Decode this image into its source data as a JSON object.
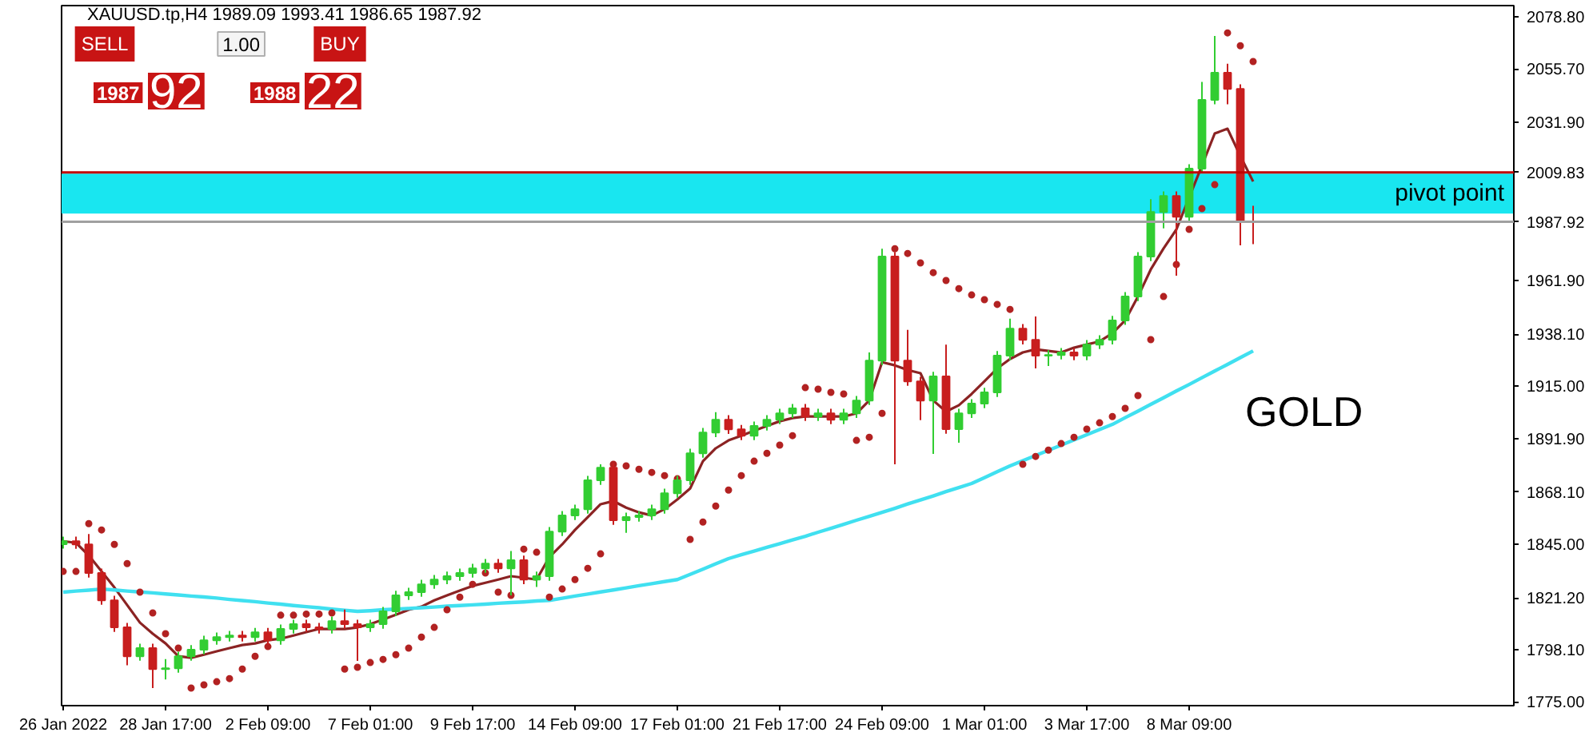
{
  "chart_data": {
    "type": "candlestick",
    "title": "XAUUSD.tp,H4  1989.09 1993.41 1986.65 1987.92",
    "categories": [
      "26 Jan 2022",
      null,
      null,
      null,
      null,
      null,
      null,
      null,
      "28 Jan 17:00",
      null,
      null,
      null,
      null,
      null,
      null,
      null,
      "2 Feb 09:00",
      null,
      null,
      null,
      null,
      null,
      null,
      null,
      "7 Feb 01:00",
      null,
      null,
      null,
      null,
      null,
      null,
      null,
      "9 Feb 17:00",
      null,
      null,
      null,
      null,
      null,
      null,
      null,
      "14 Feb 09:00",
      null,
      null,
      null,
      null,
      null,
      null,
      null,
      "17 Feb 01:00",
      null,
      null,
      null,
      null,
      null,
      null,
      null,
      "21 Feb 17:00",
      null,
      null,
      null,
      null,
      null,
      null,
      null,
      "24 Feb 09:00",
      null,
      null,
      null,
      null,
      null,
      null,
      null,
      "1 Mar 01:00",
      null,
      null,
      null,
      null,
      null,
      null,
      null,
      "3 Mar 17:00",
      null,
      null,
      null,
      null,
      null,
      null,
      null,
      "8 Mar 09:00",
      null,
      null,
      null,
      null,
      null
    ],
    "ohlc": [
      [
        1845.0,
        1848.3,
        1843.0,
        1846.3
      ],
      [
        1846.3,
        1848.3,
        1842.9,
        1844.9
      ],
      [
        1844.9,
        1849.5,
        1830.2,
        1832.2
      ],
      [
        1832.2,
        1834.2,
        1818.1,
        1820.1
      ],
      [
        1820.1,
        1822.1,
        1806.1,
        1808.1
      ],
      [
        1808.1,
        1810.1,
        1791.3,
        1795.3
      ],
      [
        1795.3,
        1800.9,
        1793.3,
        1798.9
      ],
      [
        1798.9,
        1800.9,
        1781.2,
        1789.6
      ],
      [
        1789.6,
        1794.0,
        1785.0,
        1790.0
      ],
      [
        1790.0,
        1797.3,
        1788.0,
        1795.3
      ],
      [
        1795.3,
        1800.2,
        1793.3,
        1798.2
      ],
      [
        1798.2,
        1804.4,
        1796.2,
        1802.4
      ],
      [
        1802.4,
        1805.8,
        1800.4,
        1803.8
      ],
      [
        1803.8,
        1806.5,
        1801.8,
        1804.5
      ],
      [
        1804.5,
        1806.5,
        1801.8,
        1803.8
      ],
      [
        1803.8,
        1807.9,
        1801.8,
        1805.9
      ],
      [
        1805.9,
        1807.9,
        1800.4,
        1802.4
      ],
      [
        1802.4,
        1809.4,
        1800.4,
        1807.4
      ],
      [
        1807.4,
        1811.5,
        1805.4,
        1809.5
      ],
      [
        1809.5,
        1811.5,
        1806.1,
        1808.1
      ],
      [
        1808.1,
        1810.1,
        1805.4,
        1807.4
      ],
      [
        1807.4,
        1812.9,
        1805.4,
        1810.9
      ],
      [
        1810.9,
        1816.0,
        1807.5,
        1809.5
      ],
      [
        1809.5,
        1811.5,
        1793.2,
        1808.1
      ],
      [
        1808.1,
        1811.5,
        1806.1,
        1809.5
      ],
      [
        1809.5,
        1817.2,
        1807.5,
        1815.2
      ],
      [
        1815.2,
        1824.3,
        1813.2,
        1822.3
      ],
      [
        1822.3,
        1825.7,
        1820.3,
        1823.7
      ],
      [
        1823.7,
        1829.2,
        1821.7,
        1827.2
      ],
      [
        1827.2,
        1831.3,
        1825.2,
        1829.3
      ],
      [
        1829.3,
        1832.8,
        1827.3,
        1830.8
      ],
      [
        1830.8,
        1834.2,
        1828.8,
        1832.2
      ],
      [
        1832.2,
        1836.3,
        1830.2,
        1834.3
      ],
      [
        1834.3,
        1838.4,
        1832.3,
        1836.4
      ],
      [
        1836.4,
        1838.4,
        1832.3,
        1834.3
      ],
      [
        1834.3,
        1842.0,
        1822.3,
        1837.9
      ],
      [
        1837.9,
        1839.9,
        1827.3,
        1829.3
      ],
      [
        1829.3,
        1832.8,
        1826.0,
        1830.8
      ],
      [
        1830.8,
        1852.6,
        1828.8,
        1850.6
      ],
      [
        1850.6,
        1859.7,
        1848.6,
        1857.7
      ],
      [
        1857.7,
        1862.5,
        1855.7,
        1860.5
      ],
      [
        1860.5,
        1875.3,
        1858.5,
        1873.3
      ],
      [
        1873.3,
        1880.4,
        1871.3,
        1878.9
      ],
      [
        1878.9,
        1880.9,
        1853.6,
        1855.6
      ],
      [
        1855.6,
        1859.0,
        1850.0,
        1857.0
      ],
      [
        1857.0,
        1859.7,
        1855.0,
        1857.7
      ],
      [
        1857.7,
        1862.5,
        1855.7,
        1860.5
      ],
      [
        1860.5,
        1869.6,
        1858.5,
        1867.6
      ],
      [
        1867.6,
        1875.3,
        1865.6,
        1873.3
      ],
      [
        1873.3,
        1887.3,
        1871.3,
        1885.3
      ],
      [
        1885.3,
        1896.5,
        1883.3,
        1894.5
      ],
      [
        1894.5,
        1903.5,
        1892.5,
        1900.2
      ],
      [
        1900.2,
        1902.2,
        1893.9,
        1895.9
      ],
      [
        1895.9,
        1897.9,
        1891.1,
        1893.1
      ],
      [
        1893.1,
        1899.4,
        1891.1,
        1897.4
      ],
      [
        1897.4,
        1902.2,
        1895.4,
        1900.2
      ],
      [
        1900.2,
        1905.0,
        1898.2,
        1903.0
      ],
      [
        1903.0,
        1907.2,
        1901.0,
        1905.2
      ],
      [
        1905.2,
        1907.2,
        1899.6,
        1901.6
      ],
      [
        1901.6,
        1905.0,
        1899.6,
        1903.0
      ],
      [
        1903.0,
        1905.0,
        1898.2,
        1900.2
      ],
      [
        1900.2,
        1905.0,
        1898.2,
        1903.0
      ],
      [
        1903.0,
        1910.7,
        1901.0,
        1908.7
      ],
      [
        1908.7,
        1930.0,
        1906.7,
        1926.4
      ],
      [
        1926.4,
        1976.0,
        1924.4,
        1972.5
      ],
      [
        1972.5,
        1974.5,
        1880.4,
        1926.4
      ],
      [
        1926.4,
        1940.0,
        1915.2,
        1917.2
      ],
      [
        1917.2,
        1919.2,
        1900.0,
        1908.7
      ],
      [
        1908.7,
        1921.4,
        1885.0,
        1919.4
      ],
      [
        1919.4,
        1933.5,
        1894.0,
        1896.0
      ],
      [
        1896.0,
        1905.0,
        1890.0,
        1903.0
      ],
      [
        1903.0,
        1909.3,
        1901.0,
        1907.3
      ],
      [
        1907.3,
        1914.3,
        1905.3,
        1912.3
      ],
      [
        1912.3,
        1930.6,
        1910.3,
        1928.6
      ],
      [
        1928.6,
        1945.0,
        1926.6,
        1940.6
      ],
      [
        1940.6,
        1942.6,
        1933.6,
        1935.6
      ],
      [
        1935.6,
        1946.0,
        1922.9,
        1928.6
      ],
      [
        1928.6,
        1931.0,
        1924.0,
        1928.9
      ],
      [
        1928.9,
        1932.0,
        1926.9,
        1930.0
      ],
      [
        1930.0,
        1932.0,
        1926.6,
        1928.6
      ],
      [
        1928.6,
        1935.5,
        1926.6,
        1933.5
      ],
      [
        1933.5,
        1937.6,
        1931.5,
        1935.6
      ],
      [
        1935.6,
        1946.2,
        1933.6,
        1944.2
      ],
      [
        1944.2,
        1956.8,
        1942.2,
        1954.8
      ],
      [
        1954.8,
        1974.5,
        1952.8,
        1972.5
      ],
      [
        1972.5,
        1998.0,
        1970.5,
        1992.3
      ],
      [
        1992.3,
        2001.4,
        1985.0,
        1999.4
      ],
      [
        1999.4,
        2001.4,
        1964.0,
        1990.2
      ],
      [
        1990.2,
        2013.5,
        1988.2,
        2011.5
      ],
      [
        2011.5,
        2050.0,
        2009.5,
        2042.0
      ],
      [
        2042.0,
        2070.3,
        2040.0,
        2054.0
      ],
      [
        2054.0,
        2058.0,
        2040.0,
        2046.9
      ],
      [
        2046.9,
        2048.9,
        1977.5,
        1988.1
      ],
      [
        1988.1,
        1995.0,
        1978.0,
        1987.92
      ]
    ],
    "colors": [
      "#32cd32",
      "#c81e1e",
      "#c81e1e",
      "#c81e1e",
      "#c81e1e",
      "#c81e1e",
      "#32cd32",
      "#c81e1e",
      "#32cd32",
      "#32cd32",
      "#32cd32",
      "#32cd32",
      "#32cd32",
      "#32cd32",
      "#c81e1e",
      "#32cd32",
      "#c81e1e",
      "#32cd32",
      "#32cd32",
      "#c81e1e",
      "#c81e1e",
      "#32cd32",
      "#c81e1e",
      "#c81e1e",
      "#32cd32",
      "#32cd32",
      "#32cd32",
      "#32cd32",
      "#32cd32",
      "#32cd32",
      "#32cd32",
      "#32cd32",
      "#32cd32",
      "#32cd32",
      "#c81e1e",
      "#32cd32",
      "#c81e1e",
      "#32cd32",
      "#32cd32",
      "#32cd32",
      "#32cd32",
      "#32cd32",
      "#32cd32",
      "#c81e1e",
      "#32cd32",
      "#32cd32",
      "#32cd32",
      "#32cd32",
      "#32cd32",
      "#32cd32",
      "#32cd32",
      "#32cd32",
      "#c81e1e",
      "#c81e1e",
      "#32cd32",
      "#32cd32",
      "#32cd32",
      "#32cd32",
      "#c81e1e",
      "#32cd32",
      "#c81e1e",
      "#32cd32",
      "#32cd32",
      "#32cd32",
      "#32cd32",
      "#c81e1e",
      "#c81e1e",
      "#c81e1e",
      "#32cd32",
      "#c81e1e",
      "#32cd32",
      "#32cd32",
      "#32cd32",
      "#32cd32",
      "#32cd32",
      "#c81e1e",
      "#c81e1e",
      "#32cd32",
      "#32cd32",
      "#c81e1e",
      "#32cd32",
      "#32cd32",
      "#32cd32",
      "#32cd32",
      "#32cd32",
      "#32cd32",
      "#32cd32",
      "#c81e1e",
      "#32cd32",
      "#32cd32",
      "#32cd32",
      "#c81e1e",
      "#c81e1e",
      "#c81e1e"
    ],
    "series": [
      {
        "type": "line",
        "color": "#8b2323",
        "values": [
          1846.3,
          1845.6,
          1840.0,
          1832.9,
          1825.8,
          1818.0,
          1810.2,
          1805.3,
          1801.0,
          1795.3,
          1794.6,
          1796.0,
          1797.5,
          1798.9,
          1800.3,
          1801.0,
          1802.4,
          1803.1,
          1804.5,
          1806.0,
          1807.4,
          1807.4,
          1807.4,
          1808.1,
          1809.5,
          1811.6,
          1813.7,
          1815.9,
          1817.3,
          1820.1,
          1822.3,
          1824.4,
          1826.5,
          1827.9,
          1829.3,
          1830.8,
          1830.1,
          1829.3,
          1839.3,
          1844.9,
          1851.3,
          1857.0,
          1862.7,
          1864.1,
          1861.2,
          1859.1,
          1857.7,
          1860.5,
          1864.8,
          1869.7,
          1881.8,
          1887.5,
          1891.0,
          1893.1,
          1895.3,
          1897.4,
          1899.5,
          1900.9,
          1901.6,
          1901.6,
          1901.6,
          1901.6,
          1903.0,
          1908.7,
          1925.7,
          1924.3,
          1922.2,
          1920.8,
          1908.7,
          1903.8,
          1906.6,
          1911.6,
          1917.2,
          1922.9,
          1927.1,
          1930.0,
          1931.4,
          1930.7,
          1930.0,
          1932.1,
          1933.5,
          1934.9,
          1938.5,
          1944.2,
          1954.8,
          1966.8,
          1976.1,
          1984.5,
          null,
          2012.9,
          2027.1,
          2029.2,
          2017.1,
          2005.8
        ]
      },
      {
        "type": "line",
        "color": "#40e0f0",
        "values": [
          1823.7,
          1824.2,
          1824.6,
          1825.1,
          1824.7,
          1824.2,
          1823.8,
          1823.4,
          1822.9,
          1822.5,
          1822.0,
          1821.6,
          1821.1,
          1820.5,
          1820.0,
          1819.5,
          1818.9,
          1818.4,
          1817.8,
          1817.3,
          1816.8,
          1816.2,
          1815.7,
          1815.2,
          1815.5,
          1815.9,
          1816.2,
          1816.5,
          1816.8,
          1817.1,
          1817.5,
          1817.8,
          1818.1,
          1818.4,
          1818.8,
          1819.1,
          1819.4,
          1819.8,
          1820.1,
          1821.0,
          1822.0,
          1822.9,
          1823.8,
          1824.7,
          1825.6,
          1826.6,
          1827.5,
          1828.4,
          1829.3,
          1831.6,
          1833.9,
          1836.3,
          1838.6,
          1840.3,
          1841.9,
          1843.6,
          1845.2,
          1846.9,
          1848.5,
          1850.3,
          1852.0,
          1853.8,
          1855.6,
          1857.3,
          1859.1,
          1860.9,
          1862.8,
          1864.6,
          1866.4,
          1868.3,
          1870.1,
          1871.9,
          1874.5,
          1877.1,
          1879.7,
          1882.0,
          1884.3,
          1886.6,
          1888.9,
          1891.2,
          1893.5,
          1895.8,
          1898.1,
          1901.1,
          1904.0,
          1907.0,
          1909.9,
          1912.9,
          1915.8,
          1918.8,
          1921.8,
          1924.7,
          1927.7,
          1930.7
        ]
      },
      {
        "type": "scatter",
        "color": "#b22222",
        "marker": "circle",
        "values": [
          1832.9,
          1832.9,
          1854.1,
          1851.3,
          1844.9,
          1836.4,
          1823.7,
          1814.5,
          1805.3,
          1798.9,
          1781.2,
          1782.6,
          1784.0,
          1785.4,
          1789.6,
          1795.3,
          1799.6,
          1813.5,
          1813.5,
          1814.0,
          1814.0,
          1814.5,
          1789.6,
          1790.4,
          1792.5,
          1793.9,
          1796.0,
          1798.9,
          1803.8,
          1808.1,
          1815.9,
          1821.5,
          1827.2,
          1832.2,
          1823.7,
          1822.3,
          1842.8,
          1841.4,
          1821.5,
          1825.1,
          1829.3,
          1834.3,
          1840.7,
          1880.4,
          1879.7,
          1878.2,
          1876.8,
          1875.4,
          1874.0,
          1847.1,
          1854.8,
          1861.9,
          1869.0,
          1875.4,
          1881.8,
          1885.3,
          1888.9,
          1893.1,
          1914.4,
          1913.7,
          1912.3,
          1911.6,
          1891.0,
          1892.4,
          1903.0,
          1976.0,
          1973.9,
          1969.7,
          1965.4,
          1961.9,
          1958.3,
          1955.5,
          1953.4,
          1951.3,
          1949.1,
          1880.4,
          1883.9,
          1886.7,
          1889.6,
          1892.4,
          1896.0,
          1898.8,
          1901.6,
          1905.2,
          1910.9,
          1935.7,
          1954.8,
          1969.0,
          1984.6,
          1993.8,
          2004.4,
          2071.7,
          2066.0,
          2059.0
        ]
      }
    ],
    "ylim": [
      1773.4,
      2083.8
    ],
    "yticks": [
      {
        "value": 2078.8,
        "label": "2078.80"
      },
      {
        "value": 2055.7,
        "label": "2055.70"
      },
      {
        "value": 2031.9,
        "label": "2031.90"
      },
      {
        "value": 1961.9,
        "label": "1961.90"
      },
      {
        "value": 1938.1,
        "label": "1938.10"
      },
      {
        "value": 1915.0,
        "label": "1915.00"
      },
      {
        "value": 1891.9,
        "label": "1891.90"
      },
      {
        "value": 1868.1,
        "label": "1868.10"
      },
      {
        "value": 1845.0,
        "label": "1845.00"
      },
      {
        "value": 1821.2,
        "label": "1821.20"
      },
      {
        "value": 1798.1,
        "label": "1798.10"
      },
      {
        "value": 1775.0,
        "label": "1775.00"
      }
    ],
    "ref_lines": [
      {
        "axis": "y",
        "value": 2009.83,
        "label": "2009.83",
        "color": "#c00000"
      },
      {
        "axis": "y",
        "value": 1987.92,
        "label": "1987.92",
        "color": "#a0a0a0"
      }
    ],
    "bands": [
      {
        "axis": "y",
        "from": 1991.6,
        "to": 2009.3,
        "label": "pivot point",
        "color": "#19e6f0"
      }
    ],
    "annotations": [
      "GOLD",
      "SELL",
      "1.00",
      "BUY",
      "1987 92",
      "1988 22"
    ],
    "grid": false
  }
}
